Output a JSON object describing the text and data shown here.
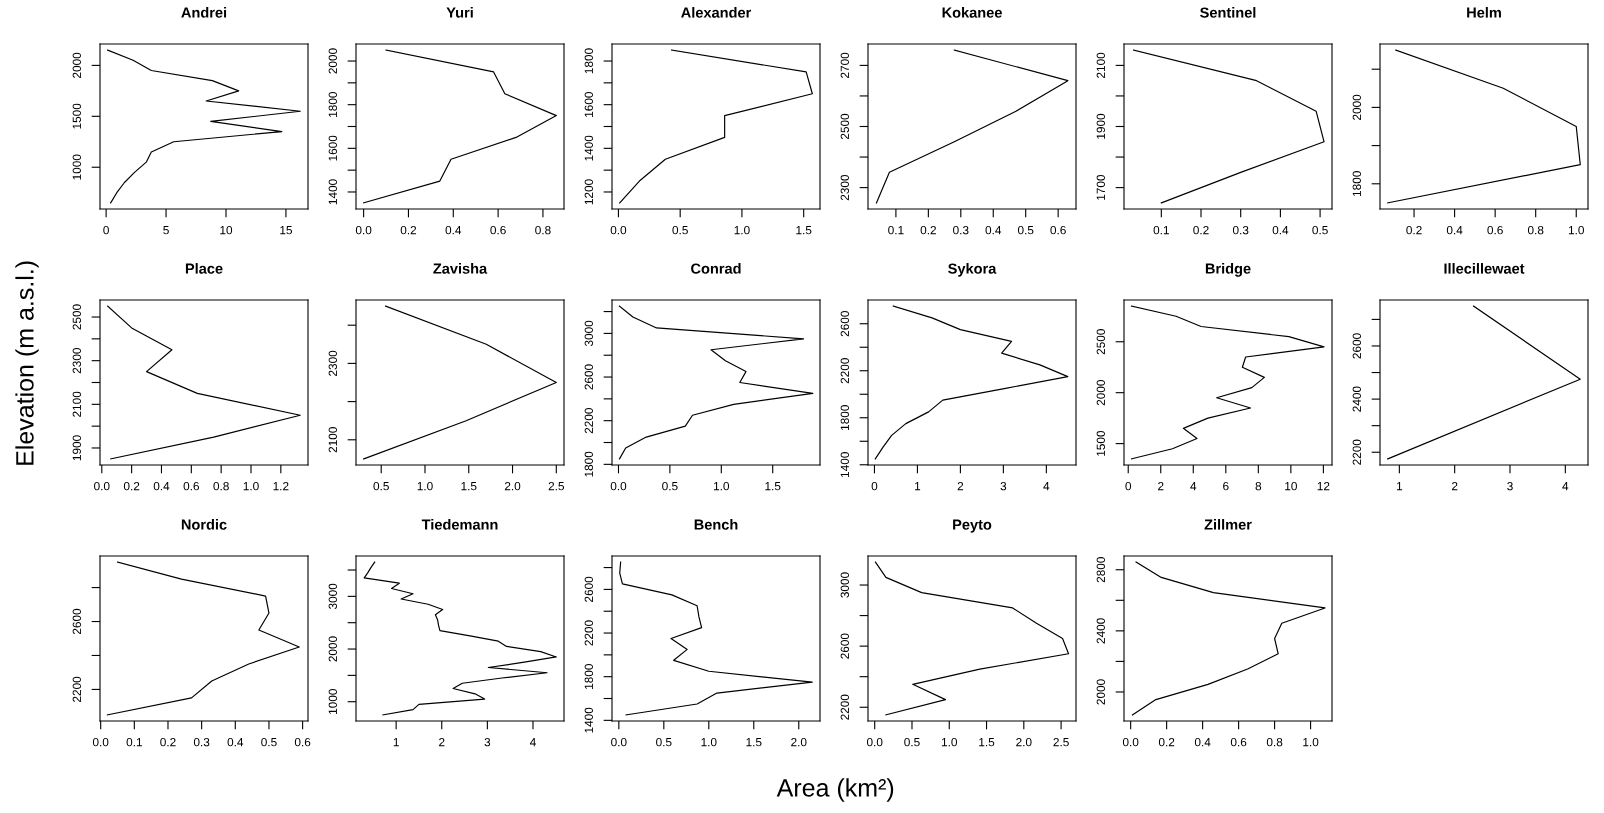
{
  "chart_data": [
    {
      "type": "line",
      "title": "Andrei",
      "series": [
        {
          "color": "#000000",
          "x": [
            0.13,
            2.25,
            3.77,
            8.86,
            11.06,
            8.35,
            16.2,
            8.73,
            14.66,
            5.64,
            3.77,
            3.35,
            2.37,
            1.53,
            0.89,
            0.38
          ],
          "values": [
            2150,
            2050,
            1950,
            1850,
            1750,
            1650,
            1550,
            1450,
            1350,
            1250,
            1150,
            1050,
            950,
            850,
            750,
            650
          ]
        }
      ],
      "xlim": [
        -0.51,
        16.84
      ],
      "ylim": [
        590,
        2210
      ],
      "xticks": [
        0,
        5,
        10,
        15
      ],
      "yticks": [
        1000,
        1500,
        2000
      ]
    },
    {
      "type": "line",
      "title": "Yuri",
      "series": [
        {
          "color": "#000000",
          "x": [
            0.1,
            0.58,
            0.63,
            0.86,
            0.68,
            0.39,
            0.34,
            0.0
          ],
          "values": [
            2050,
            1950,
            1850,
            1750,
            1650,
            1550,
            1450,
            1350
          ]
        }
      ],
      "xlim": [
        -0.034,
        0.894
      ],
      "ylim": [
        1322,
        2078
      ],
      "xticks": [
        {
          "value": 0,
          "label": "0.0"
        },
        0.2,
        0.4,
        0.6,
        0.8
      ],
      "yticks": [
        1400,
        {
          "value": 1500,
          "label": null
        },
        1600,
        {
          "value": 1700,
          "label": null
        },
        1800,
        {
          "value": 1900,
          "label": null
        },
        2000
      ]
    },
    {
      "type": "line",
      "title": "Alexander",
      "series": [
        {
          "color": "#000000",
          "x": [
            0.43,
            1.52,
            1.57,
            0.86,
            0.86,
            0.38,
            0.17,
            0.01
          ],
          "values": [
            1850,
            1750,
            1650,
            1550,
            1450,
            1350,
            1250,
            1150
          ]
        }
      ],
      "xlim": [
        -0.052,
        1.632
      ],
      "ylim": [
        1122,
        1878
      ],
      "xticks": [
        {
          "value": 0,
          "label": "0.0"
        },
        0.5,
        {
          "value": 1,
          "label": "1.0"
        },
        1.5
      ],
      "yticks": [
        1200,
        {
          "value": 1300,
          "label": null
        },
        1400,
        {
          "value": 1500,
          "label": null
        },
        1600,
        {
          "value": 1700,
          "label": null
        },
        1800
      ]
    },
    {
      "type": "line",
      "title": "Kokanee",
      "series": [
        {
          "color": "#000000",
          "x": [
            0.28,
            0.63,
            0.47,
            0.28,
            0.08,
            0.04
          ],
          "values": [
            2750,
            2650,
            2550,
            2450,
            2350,
            2250
          ]
        }
      ],
      "xlim": [
        0.014,
        0.655
      ],
      "ylim": [
        2230,
        2770
      ],
      "xticks": [
        0.1,
        0.2,
        0.3,
        0.4,
        0.5,
        0.6
      ],
      "yticks": [
        2300,
        {
          "value": 2400,
          "label": null
        },
        2500,
        {
          "value": 2600,
          "label": null
        },
        2700
      ]
    },
    {
      "type": "line",
      "title": "Sentinel",
      "series": [
        {
          "color": "#000000",
          "x": [
            0.03,
            0.34,
            0.49,
            0.51,
            0.3,
            0.1
          ],
          "values": [
            2150,
            2050,
            1950,
            1850,
            1750,
            1650
          ]
        }
      ],
      "xlim": [
        0.006,
        0.53
      ],
      "ylim": [
        1630,
        2170
      ],
      "xticks": [
        0.1,
        0.2,
        0.3,
        0.4,
        0.5
      ],
      "yticks": [
        1700,
        {
          "value": 1800,
          "label": null
        },
        1900,
        {
          "value": 2000,
          "label": null
        },
        2100
      ]
    },
    {
      "type": "line",
      "title": "Helm",
      "series": [
        {
          "color": "#000000",
          "x": [
            0.11,
            0.64,
            1.0,
            1.02,
            0.07
          ],
          "values": [
            2150,
            2050,
            1950,
            1850,
            1750
          ]
        }
      ],
      "xlim": [
        0.032,
        1.058
      ],
      "ylim": [
        1734,
        2166
      ],
      "xticks": [
        0.2,
        0.4,
        0.6,
        0.8,
        {
          "value": 1,
          "label": "1.0"
        }
      ],
      "yticks": [
        1800,
        {
          "value": 1900,
          "label": null
        },
        2000,
        {
          "value": 2100,
          "label": null
        }
      ]
    },
    {
      "type": "line",
      "title": "Place",
      "ylabel": "Elevation (m a.s.l.)",
      "series": [
        {
          "color": "#000000",
          "x": [
            0.04,
            0.2,
            0.47,
            0.3,
            0.64,
            1.33,
            0.75,
            0.06
          ],
          "values": [
            2550,
            2450,
            2350,
            2250,
            2150,
            2050,
            1950,
            1850
          ]
        }
      ],
      "xlim": [
        -0.012,
        1.382
      ],
      "ylim": [
        1822,
        2578
      ],
      "xticks": [
        {
          "value": 0,
          "label": "0.0"
        },
        0.2,
        0.4,
        0.6,
        0.8,
        {
          "value": 1,
          "label": "1.0"
        },
        1.2
      ],
      "yticks": [
        1900,
        {
          "value": 2000,
          "label": null
        },
        2100,
        {
          "value": 2200,
          "label": null
        },
        2300,
        {
          "value": 2400,
          "label": null
        },
        2500
      ]
    },
    {
      "type": "line",
      "title": "Zavisha",
      "series": [
        {
          "color": "#000000",
          "x": [
            0.55,
            1.7,
            2.5,
            1.47,
            0.3
          ],
          "values": [
            2450,
            2350,
            2250,
            2150,
            2050
          ]
        }
      ],
      "xlim": [
        0.212,
        2.588
      ],
      "ylim": [
        2034,
        2466
      ],
      "xticks": [
        0.5,
        {
          "value": 1,
          "label": "1.0"
        },
        1.5,
        {
          "value": 2,
          "label": "2.0"
        },
        2.5
      ],
      "yticks": [
        2100,
        {
          "value": 2200,
          "label": null
        },
        2300,
        {
          "value": 2400,
          "label": null
        }
      ]
    },
    {
      "type": "line",
      "title": "Conrad",
      "series": [
        {
          "color": "#000000",
          "x": [
            0.01,
            0.14,
            0.37,
            1.8,
            0.9,
            1.04,
            1.24,
            1.18,
            1.89,
            1.12,
            0.72,
            0.65,
            0.27,
            0.07,
            0.01
          ],
          "values": [
            3250,
            3150,
            3050,
            2950,
            2850,
            2750,
            2650,
            2550,
            2450,
            2350,
            2250,
            2150,
            2050,
            1950,
            1850
          ]
        }
      ],
      "xlim": [
        -0.063,
        1.96
      ],
      "ylim": [
        1794,
        3306
      ],
      "xticks": [
        {
          "value": 0,
          "label": "0.0"
        },
        0.5,
        {
          "value": 1,
          "label": "1.0"
        },
        1.5
      ],
      "yticks": [
        1800,
        {
          "value": 2000,
          "label": null
        },
        2200,
        {
          "value": 2400,
          "label": null
        },
        2600,
        {
          "value": 2800,
          "label": null
        },
        3000,
        {
          "value": 3200,
          "label": null
        }
      ]
    },
    {
      "type": "line",
      "title": "Sykora",
      "series": [
        {
          "color": "#000000",
          "x": [
            0.44,
            1.34,
            2.0,
            3.19,
            2.96,
            3.85,
            4.5,
            3.05,
            1.59,
            1.26,
            0.73,
            0.4,
            0.2,
            0.02
          ],
          "values": [
            2750,
            2650,
            2550,
            2450,
            2350,
            2250,
            2150,
            2050,
            1950,
            1850,
            1750,
            1650,
            1550,
            1450
          ]
        }
      ],
      "xlim": [
        -0.15,
        4.69
      ],
      "ylim": [
        1398,
        2802
      ],
      "xticks": [
        0,
        1,
        2,
        3,
        4
      ],
      "yticks": [
        1400,
        {
          "value": 1600,
          "label": null
        },
        1800,
        {
          "value": 2000,
          "label": null
        },
        2200,
        {
          "value": 2400,
          "label": null
        },
        2600
      ]
    },
    {
      "type": "line",
      "title": "Bridge",
      "series": [
        {
          "color": "#000000",
          "x": [
            0.2,
            2.94,
            4.48,
            9.88,
            12.04,
            7.22,
            7.02,
            8.37,
            7.6,
            5.44,
            7.52,
            4.9,
            3.39,
            4.23,
            2.72,
            0.2
          ],
          "values": [
            2850,
            2750,
            2650,
            2550,
            2450,
            2350,
            2250,
            2150,
            2050,
            1950,
            1850,
            1750,
            1650,
            1550,
            1450,
            1350
          ]
        }
      ],
      "xlim": [
        -0.26,
        12.53
      ],
      "ylim": [
        1290,
        2910
      ],
      "xticks": [
        0,
        2,
        4,
        6,
        8,
        10,
        12
      ],
      "yticks": [
        1500,
        2000,
        2500
      ]
    },
    {
      "type": "line",
      "title": "Illecillewaet",
      "series": [
        {
          "color": "#000000",
          "x": [
            2.34,
            4.27,
            0.79
          ],
          "values": [
            2750,
            2475,
            2175
          ]
        }
      ],
      "xlim": [
        0.65,
        4.41
      ],
      "ylim": [
        2152,
        2773
      ],
      "xticks": [
        1,
        2,
        3,
        4
      ],
      "yticks": [
        2200,
        {
          "value": 2300,
          "label": null
        },
        2400,
        {
          "value": 2500,
          "label": null
        },
        2600,
        {
          "value": 2700,
          "label": null
        }
      ]
    },
    {
      "type": "line",
      "title": "Nordic",
      "series": [
        {
          "color": "#000000",
          "x": [
            0.05,
            0.24,
            0.49,
            0.5,
            0.47,
            0.59,
            0.44,
            0.33,
            0.27,
            0.02
          ],
          "values": [
            2950,
            2850,
            2750,
            2650,
            2550,
            2450,
            2350,
            2250,
            2150,
            2050
          ]
        }
      ],
      "xlim": [
        -0.002,
        0.616
      ],
      "ylim": [
        2014,
        2986
      ],
      "xticks": [
        {
          "value": 0,
          "label": "0.0"
        },
        0.1,
        0.2,
        0.3,
        0.4,
        0.5,
        0.6
      ],
      "yticks": [
        2200,
        {
          "value": 2400,
          "label": null
        },
        2600,
        {
          "value": 2800,
          "label": null
        }
      ]
    },
    {
      "type": "line",
      "title": "Tiedemann",
      "series": [
        {
          "color": "#000000",
          "x": [
            0.53,
            0.45,
            0.38,
            0.3,
            1.07,
            0.9,
            1.37,
            1.11,
            1.7,
            2.02,
            1.86,
            1.91,
            1.93,
            1.96,
            2.62,
            3.24,
            3.42,
            4.17,
            4.51,
            3.81,
            3.02,
            4.31,
            3.32,
            2.45,
            2.25,
            2.73,
            2.94,
            1.5,
            1.37,
            0.71
          ],
          "values": [
            3650,
            3550,
            3450,
            3350,
            3250,
            3150,
            3050,
            2950,
            2850,
            2750,
            2650,
            2550,
            2450,
            2350,
            2250,
            2150,
            2050,
            1950,
            1850,
            1750,
            1650,
            1550,
            1450,
            1350,
            1250,
            1150,
            1050,
            950,
            850,
            750
          ]
        }
      ],
      "xlim": [
        0.12,
        4.68
      ],
      "ylim": [
        634,
        3766
      ],
      "xticks": [
        1,
        2,
        3,
        4
      ],
      "yticks": [
        1000,
        {
          "value": 1500,
          "label": null
        },
        2000,
        {
          "value": 2500,
          "label": null
        },
        3000,
        {
          "value": 3500,
          "label": null
        }
      ]
    },
    {
      "type": "line",
      "title": "Bench",
      "xlabel": "Area (km²)",
      "series": [
        {
          "color": "#000000",
          "x": [
            0.02,
            0.01,
            0.04,
            0.59,
            0.87,
            0.89,
            0.92,
            0.58,
            0.76,
            0.61,
            1.0,
            2.15,
            1.09,
            0.87,
            0.08
          ],
          "values": [
            2850,
            2750,
            2650,
            2550,
            2450,
            2350,
            2250,
            2150,
            2050,
            1950,
            1850,
            1750,
            1650,
            1550,
            1450
          ]
        }
      ],
      "xlim": [
        -0.076,
        2.236
      ],
      "ylim": [
        1394,
        2906
      ],
      "xticks": [
        {
          "value": 0,
          "label": "0.0"
        },
        0.5,
        {
          "value": 1,
          "label": "1.0"
        },
        1.5,
        {
          "value": 2,
          "label": "2.0"
        }
      ],
      "yticks": [
        1400,
        {
          "value": 1600,
          "label": null
        },
        1800,
        {
          "value": 2000,
          "label": null
        },
        2200,
        {
          "value": 2400,
          "label": null
        },
        2600,
        {
          "value": 2800,
          "label": null
        }
      ]
    },
    {
      "type": "line",
      "title": "Peyto",
      "series": [
        {
          "color": "#000000",
          "x": [
            0.01,
            0.15,
            0.63,
            1.85,
            2.17,
            2.52,
            2.6,
            1.41,
            0.51,
            0.95,
            0.15
          ],
          "values": [
            3150,
            3050,
            2950,
            2850,
            2750,
            2650,
            2550,
            2450,
            2350,
            2250,
            2150
          ]
        }
      ],
      "xlim": [
        -0.09,
        2.7
      ],
      "ylim": [
        2110,
        3190
      ],
      "xticks": [
        {
          "value": 0,
          "label": "0.0"
        },
        0.5,
        {
          "value": 1,
          "label": "1.0"
        },
        1.5,
        {
          "value": 2,
          "label": "2.0"
        },
        2.5
      ],
      "yticks": [
        2200,
        {
          "value": 2400,
          "label": null
        },
        2600,
        {
          "value": 2800,
          "label": null
        },
        3000
      ]
    },
    {
      "type": "line",
      "title": "Zillmer",
      "series": [
        {
          "color": "#000000",
          "x": [
            0.03,
            0.17,
            0.46,
            1.08,
            0.84,
            0.8,
            0.82,
            0.65,
            0.43,
            0.14,
            0.01
          ],
          "values": [
            2850,
            2750,
            2650,
            2550,
            2450,
            2350,
            2250,
            2150,
            2050,
            1950,
            1850
          ]
        }
      ],
      "xlim": [
        -0.037,
        1.119
      ],
      "ylim": [
        1810,
        2890
      ],
      "xticks": [
        {
          "value": 0,
          "label": "0.0"
        },
        0.2,
        0.4,
        0.6,
        0.8,
        {
          "value": 1,
          "label": "1.0"
        }
      ],
      "yticks": [
        2000,
        {
          "value": 2200,
          "label": null
        },
        2400,
        {
          "value": 2600,
          "label": null
        },
        2800
      ]
    }
  ]
}
